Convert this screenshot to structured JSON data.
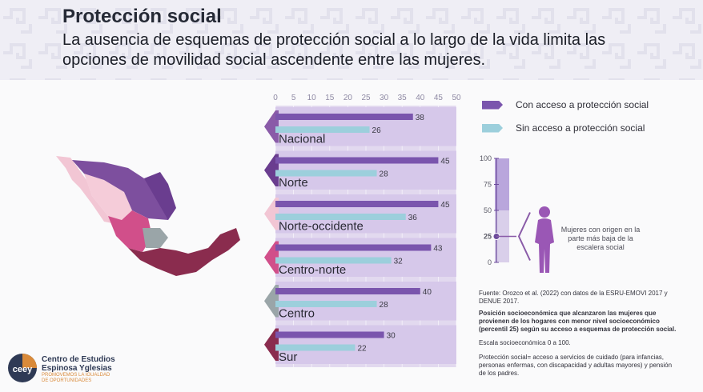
{
  "header": {
    "title": "Protección social",
    "subtitle": "La ausencia de esquemas de protección social a lo largo de la vida limita las opciones de movilidad social ascendente entre las mujeres."
  },
  "chart_data": {
    "type": "bar",
    "orientation": "horizontal",
    "categories": [
      "Nacional",
      "Norte",
      "Norte-occidente",
      "Centro-norte",
      "Centro",
      "Sur"
    ],
    "series": [
      {
        "name": "Con acceso a protección social",
        "values": [
          38,
          45,
          45,
          43,
          40,
          30
        ],
        "color": "#7a55ad"
      },
      {
        "name": "Sin acceso a protección social",
        "values": [
          26,
          28,
          36,
          32,
          28,
          22
        ],
        "color": "#9ccfdc"
      }
    ],
    "xlim": [
      0,
      50
    ],
    "xticks": [
      "0",
      "5",
      "10",
      "15",
      "20",
      "25",
      "30",
      "35",
      "40",
      "45",
      "50"
    ],
    "region_colors": [
      "#8a5ba8",
      "#6a3d8f",
      "#f2c6d4",
      "#d14f8a",
      "#9aa5a8",
      "#8a2c4e"
    ],
    "legend": "top-right"
  },
  "scale_gauge": {
    "ticks": [
      "100",
      "75",
      "50",
      "25",
      "0"
    ],
    "value": 25,
    "label": "Mujeres con origen en la parte más baja de la escalera social"
  },
  "notes": {
    "source": "Fuente: Orozco et al. (2022) con datos de la ESRU-EMOVI 2017 y DENUE 2017.",
    "definition": "Posición socioeconómica que alcanzaron las mujeres que provienen de los hogares con menor nivel socioeconómico (percentil 25) según su acceso a esquemas de protección social.",
    "scale": "Escala socioeconómica 0 a 100.",
    "social_protection": "Protección social= acceso a servicios de cuidado (para infancias, personas enfermas, con discapacidad y adultas mayores) y pensión de los padres."
  },
  "logo": {
    "mark": "ceey",
    "name_line1": "Centro de Estudios",
    "name_line2": "Espinosa Yglesias",
    "tagline": "PROMOVEMOS LA IGUALDAD DE OPORTUNIDADES"
  }
}
